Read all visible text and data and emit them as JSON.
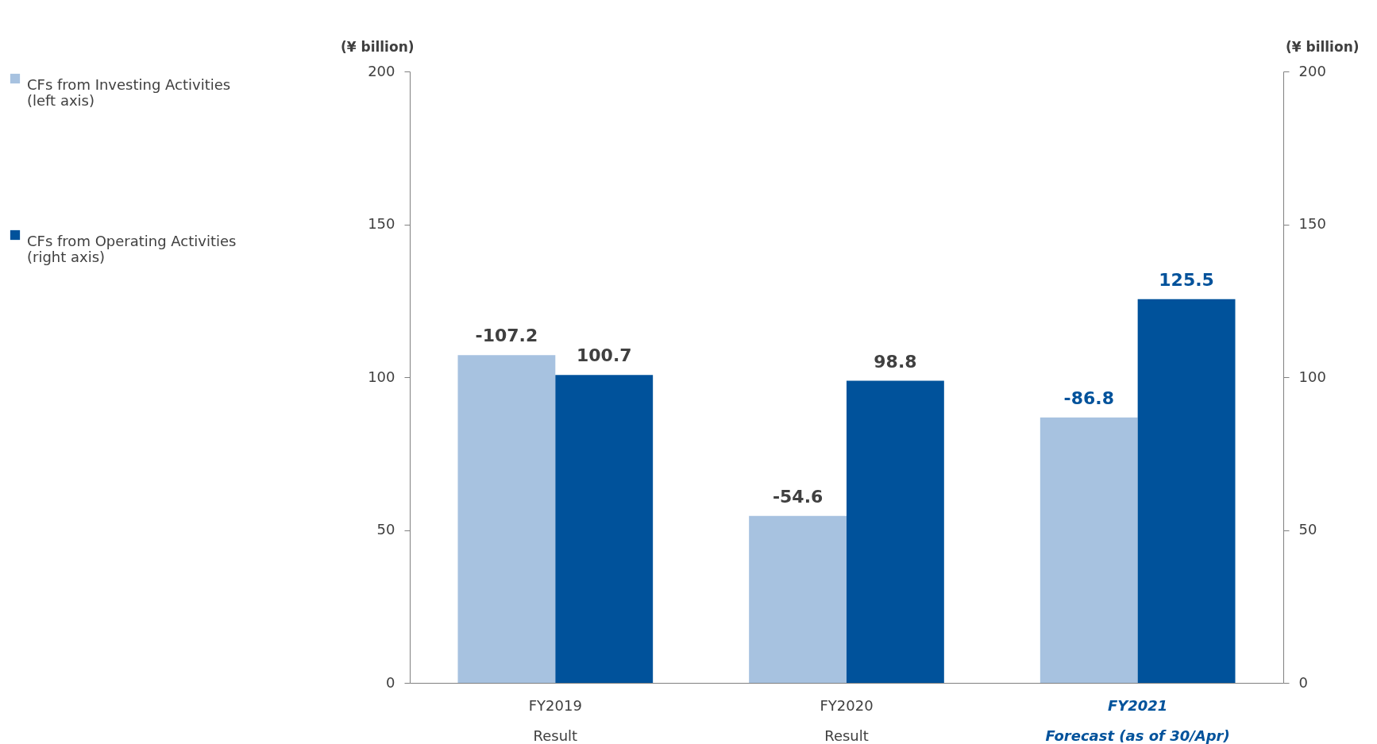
{
  "chart_data": {
    "type": "bar",
    "ylabel": "(¥ billion)",
    "y2label": "(¥ billion)",
    "categories": [
      "FY2019\nResult",
      "FY2020\nResult",
      "FY2021\nForecast (as of 30/Apr)"
    ],
    "series": [
      {
        "name": "CFs from Investing Activities\n(left axis)",
        "color": "#a7c2e0",
        "values": [
          107.2,
          54.6,
          86.8
        ]
      },
      {
        "name": "CFs from Operating Activities\n(right axis)",
        "color": "#00529b",
        "axis": "y2",
        "values": [
          100.7,
          98.8,
          125.5
        ],
        "value_labels": [
          "100.7",
          "98.8",
          "125.5"
        ]
      }
    ],
    "annotations": [
      {
        "text": "-107.2",
        "x": "FY2019\nResult",
        "y": 107.2
      },
      {
        "text": "-54.6",
        "x": "FY2020\nResult",
        "y": 54.6
      },
      {
        "text": "-86.8",
        "x": "FY2021\nForecast (as of 30/Apr)",
        "y": 86.8
      }
    ],
    "ylim": [
      0,
      200
    ],
    "yticks": [
      0,
      50,
      100,
      150,
      200
    ],
    "y2lim": [
      0,
      200
    ],
    "y2ticks": [
      0,
      50,
      100,
      150,
      200
    ],
    "grid": false,
    "legend": "left"
  }
}
